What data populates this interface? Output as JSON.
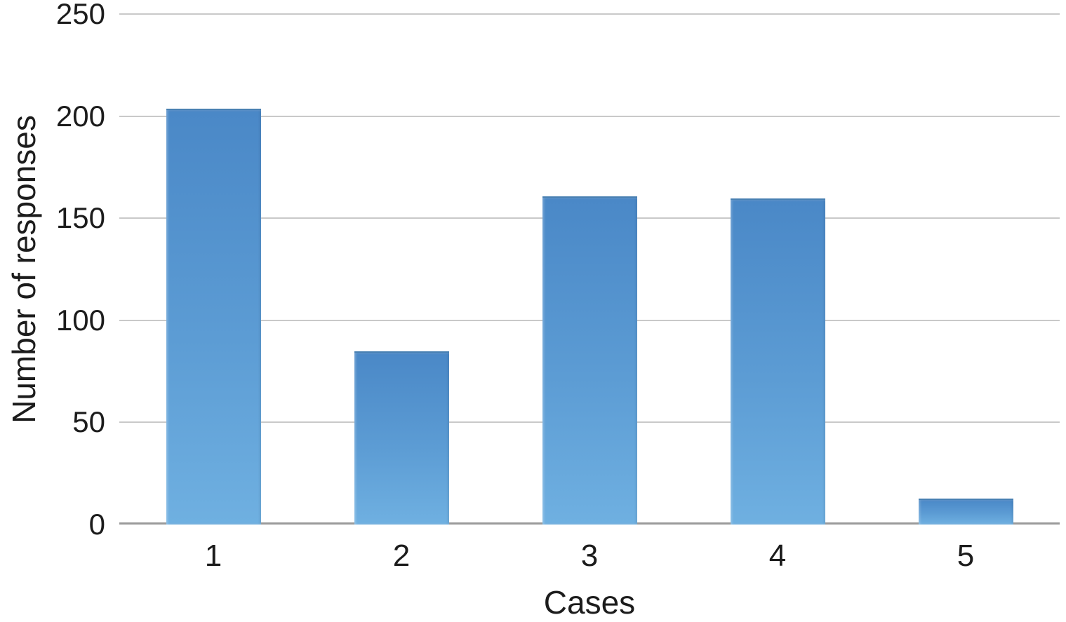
{
  "chart_data": {
    "type": "bar",
    "categories": [
      "1",
      "2",
      "3",
      "4",
      "5"
    ],
    "values": [
      203,
      84,
      160,
      159,
      12
    ],
    "title": "",
    "xlabel": "Cases",
    "ylabel": "Number of responses",
    "ylim": [
      0,
      250
    ],
    "yticks": [
      0,
      50,
      100,
      150,
      200,
      250
    ],
    "grid": true,
    "legend": "none",
    "bar_color_top": "#4a88c7",
    "bar_color_mid": "#5c9cd4",
    "bar_color_bottom": "#6fb0e1",
    "gridline_color": "#c9c9c9",
    "baseline_color": "#9a9a9a",
    "text_color": "#1c1c1c"
  }
}
